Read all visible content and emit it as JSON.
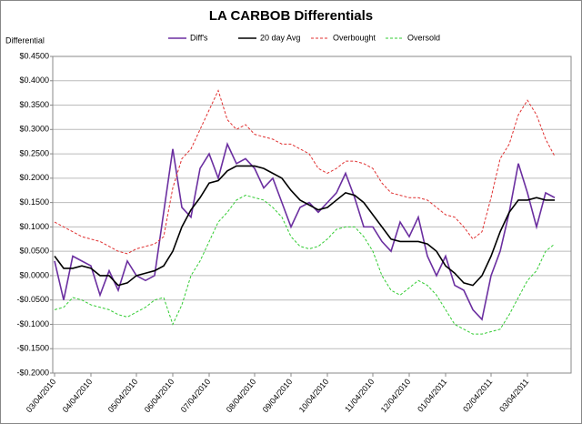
{
  "chart_data": {
    "type": "line",
    "title": "LA CARBOB Differentials",
    "y_label": "Differential",
    "categories": [
      "03/04/2010",
      null,
      null,
      null,
      "04/04/2010",
      null,
      null,
      null,
      null,
      "05/04/2010",
      null,
      null,
      null,
      "06/04/2010",
      null,
      null,
      null,
      "07/04/2010",
      null,
      null,
      null,
      null,
      "08/04/2010",
      null,
      null,
      null,
      "09/04/2010",
      null,
      null,
      null,
      "10/04/2010",
      null,
      null,
      null,
      null,
      "11/04/2010",
      null,
      null,
      null,
      "12/04/2010",
      null,
      null,
      null,
      "01/04/2011",
      null,
      null,
      null,
      null,
      "02/04/2011",
      null,
      null,
      null,
      "03/04/2011",
      null,
      null,
      null
    ],
    "series": [
      {
        "name": "Diff's",
        "color": "#6b2fa0",
        "dashed": false,
        "values": [
          0.03,
          -0.05,
          0.04,
          0.03,
          0.02,
          -0.04,
          0.01,
          -0.03,
          0.03,
          0.0,
          -0.01,
          0.0,
          0.13,
          0.26,
          0.14,
          0.12,
          0.22,
          0.25,
          0.2,
          0.27,
          0.23,
          0.24,
          0.22,
          0.18,
          0.2,
          0.15,
          0.1,
          0.14,
          0.15,
          0.13,
          0.15,
          0.17,
          0.21,
          0.16,
          0.1,
          0.1,
          0.07,
          0.05,
          0.11,
          0.08,
          0.12,
          0.04,
          0.0,
          0.04,
          -0.02,
          -0.03,
          -0.07,
          -0.09,
          0.0,
          0.05,
          0.13,
          0.23,
          0.17,
          0.1,
          0.17,
          0.16
        ]
      },
      {
        "name": "20 day Avg",
        "color": "#000000",
        "dashed": false,
        "values": [
          0.04,
          0.015,
          0.015,
          0.02,
          0.015,
          0.0,
          0.0,
          -0.02,
          -0.015,
          0.0,
          0.005,
          0.01,
          0.02,
          0.05,
          0.1,
          0.135,
          0.16,
          0.19,
          0.195,
          0.215,
          0.225,
          0.225,
          0.225,
          0.22,
          0.21,
          0.2,
          0.175,
          0.155,
          0.145,
          0.135,
          0.14,
          0.155,
          0.17,
          0.165,
          0.15,
          0.125,
          0.1,
          0.075,
          0.07,
          0.07,
          0.07,
          0.065,
          0.05,
          0.02,
          0.005,
          -0.015,
          -0.02,
          0.0,
          0.04,
          0.09,
          0.13,
          0.155,
          0.155,
          0.16,
          0.155,
          0.155
        ]
      },
      {
        "name": "Overbought",
        "color": "#e03030",
        "dashed": true,
        "values": [
          0.11,
          0.1,
          0.09,
          0.08,
          0.075,
          0.07,
          0.06,
          0.05,
          0.045,
          0.055,
          0.06,
          0.065,
          0.08,
          0.18,
          0.24,
          0.26,
          0.3,
          0.34,
          0.38,
          0.32,
          0.3,
          0.31,
          0.29,
          0.285,
          0.28,
          0.27,
          0.27,
          0.26,
          0.25,
          0.22,
          0.21,
          0.22,
          0.235,
          0.235,
          0.23,
          0.22,
          0.19,
          0.17,
          0.165,
          0.16,
          0.16,
          0.155,
          0.14,
          0.125,
          0.12,
          0.1,
          0.075,
          0.09,
          0.16,
          0.24,
          0.27,
          0.33,
          0.36,
          0.33,
          0.28,
          0.245
        ]
      },
      {
        "name": "Oversold",
        "color": "#33cc33",
        "dashed": true,
        "values": [
          -0.07,
          -0.065,
          -0.045,
          -0.05,
          -0.06,
          -0.065,
          -0.07,
          -0.08,
          -0.085,
          -0.075,
          -0.065,
          -0.05,
          -0.045,
          -0.1,
          -0.06,
          0.0,
          0.03,
          0.07,
          0.11,
          0.13,
          0.155,
          0.165,
          0.16,
          0.155,
          0.14,
          0.12,
          0.08,
          0.06,
          0.055,
          0.06,
          0.075,
          0.095,
          0.1,
          0.1,
          0.08,
          0.05,
          0.0,
          -0.03,
          -0.04,
          -0.025,
          -0.01,
          -0.02,
          -0.04,
          -0.07,
          -0.1,
          -0.11,
          -0.12,
          -0.12,
          -0.115,
          -0.11,
          -0.08,
          -0.045,
          -0.01,
          0.01,
          0.05,
          0.065
        ]
      }
    ],
    "ylim": [
      -0.2,
      0.45
    ],
    "yticks": [
      {
        "value": -0.2,
        "label": "-$0.2000"
      },
      {
        "value": -0.15,
        "label": "-$0.1500"
      },
      {
        "value": -0.1,
        "label": "-$0.1000"
      },
      {
        "value": -0.05,
        "label": "-$0.0500"
      },
      {
        "value": 0,
        "label": "$0.0000"
      },
      {
        "value": 0.05,
        "label": "$0.0500"
      },
      {
        "value": 0.1,
        "label": "$0.1000"
      },
      {
        "value": 0.15,
        "label": "$0.1500"
      },
      {
        "value": 0.2,
        "label": "$0.2000"
      },
      {
        "value": 0.25,
        "label": "$0.2500"
      },
      {
        "value": 0.3,
        "label": "$0.3000"
      },
      {
        "value": 0.35,
        "label": "$0.3500"
      },
      {
        "value": 0.4,
        "label": "$0.4000"
      },
      {
        "value": 0.45,
        "label": "$0.4500"
      }
    ],
    "grid": true,
    "legend": "top"
  }
}
